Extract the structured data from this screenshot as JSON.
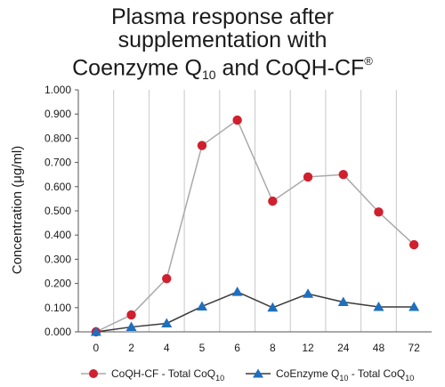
{
  "chart_data": {
    "type": "line",
    "title": {
      "line1": "Plasma response after",
      "line2": "supplementation with",
      "line3_a": "Coenzyme Q",
      "line3_sub": "10",
      "line3_b": " and CoQH-CF",
      "line3_sup": "®"
    },
    "xlabel": "",
    "ylabel": "Concentration (μg/ml)",
    "categories": [
      "0",
      "2",
      "4",
      "5",
      "6",
      "8",
      "12",
      "24",
      "48",
      "72"
    ],
    "ylim": [
      0,
      1.0
    ],
    "yticks": [
      "0.000",
      "0.100",
      "0.200",
      "0.300",
      "0.400",
      "0.500",
      "0.600",
      "0.700",
      "0.800",
      "0.900",
      "1.000"
    ],
    "grid": "vertical",
    "legend_position": "bottom",
    "series": [
      {
        "name": "CoQH-CF - Total CoQ",
        "name_sub": "10",
        "marker": "circle",
        "marker_color": "#d0202e",
        "line_color": "#a9a9a9",
        "values": [
          0.0,
          0.07,
          0.22,
          0.77,
          0.875,
          0.54,
          0.64,
          0.65,
          0.495,
          0.36
        ]
      },
      {
        "name_a": "CoEnzyme Q",
        "name_sub_a": "10",
        "name_b": " - Total CoQ",
        "name_sub_b": "10",
        "marker": "triangle",
        "marker_color": "#1f6fbf",
        "line_color": "#3a3a3a",
        "values": [
          0.0,
          0.02,
          0.035,
          0.105,
          0.165,
          0.1,
          0.157,
          0.123,
          0.103,
          0.103
        ]
      }
    ]
  }
}
